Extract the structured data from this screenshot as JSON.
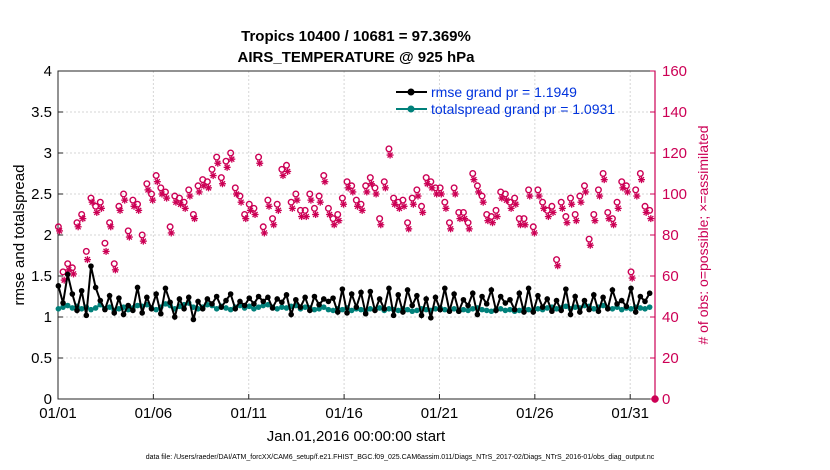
{
  "chart_data": {
    "type": "line",
    "title": "Tropics 10400 / 10681 = 97.369%",
    "subtitle": "AIRS_TEMPERATURE @ 925 hPa",
    "xlabel": "Jan.01,2016 00:00:00 start",
    "ylabel": "rmse and totalspread",
    "ylabel_right": "# of obs: o=possible; ×=assimilated",
    "ylim": [
      0,
      4
    ],
    "ylim_right": [
      0,
      160
    ],
    "xlim": [
      0,
      31.3
    ],
    "x_ticks": [
      0,
      5,
      10,
      15,
      20,
      25,
      30
    ],
    "x_tick_labels": [
      "01/01",
      "01/06",
      "01/11",
      "01/16",
      "01/21",
      "01/26",
      "01/31"
    ],
    "y_ticks": [
      "0",
      "0.5",
      "1",
      "1.5",
      "2",
      "2.5",
      "3",
      "3.5",
      "4"
    ],
    "y_ticks_right": [
      "0",
      "20",
      "40",
      "60",
      "80",
      "100",
      "120",
      "140",
      "160"
    ],
    "legend_position": "top-right",
    "series": [
      {
        "name": "rmse grand pr = 1.1949",
        "axis": "left",
        "color": "#000000",
        "marker": "filled-circle",
        "values": [
          1.38,
          1.17,
          1.52,
          1.28,
          1.08,
          1.32,
          1.02,
          1.62,
          1.36,
          1.2,
          1.09,
          1.26,
          1.05,
          1.23,
          1.03,
          1.14,
          1.08,
          1.36,
          1.05,
          1.24,
          1.1,
          1.28,
          1.04,
          1.35,
          1.18,
          1.0,
          1.22,
          1.1,
          1.24,
          0.97,
          1.19,
          1.1,
          1.22,
          1.16,
          1.25,
          1.12,
          1.2,
          1.28,
          1.1,
          1.19,
          1.14,
          1.23,
          1.16,
          1.25,
          1.19,
          1.24,
          1.11,
          1.22,
          1.18,
          1.27,
          1.03,
          1.21,
          1.12,
          1.24,
          1.08,
          1.25,
          1.15,
          1.22,
          1.19,
          1.23,
          1.06,
          1.34,
          1.05,
          1.28,
          1.12,
          1.3,
          1.04,
          1.31,
          1.08,
          1.22,
          1.1,
          1.35,
          1.02,
          1.27,
          1.06,
          1.33,
          1.14,
          1.26,
          1.02,
          1.22,
          0.99,
          1.24,
          1.09,
          1.35,
          1.07,
          1.28,
          1.07,
          1.21,
          1.14,
          1.29,
          1.03,
          1.25,
          1.16,
          1.33,
          1.08,
          1.25,
          1.17,
          1.21,
          1.09,
          1.29,
          1.06,
          1.35,
          1.06,
          1.26,
          1.12,
          1.22,
          1.07,
          1.2,
          1.08,
          1.34,
          1.03,
          1.25,
          1.06,
          1.2,
          1.09,
          1.27,
          1.07,
          1.24,
          1.1,
          1.33,
          1.16,
          1.2,
          1.13,
          1.35,
          1.06,
          1.25,
          1.19,
          1.29
        ]
      },
      {
        "name": "totalspread grand pr = 1.0931",
        "axis": "left",
        "color": "#00807a",
        "marker": "filled-circle",
        "values": [
          1.1,
          1.12,
          1.14,
          1.11,
          1.13,
          1.1,
          1.12,
          1.09,
          1.11,
          1.15,
          1.1,
          1.12,
          1.08,
          1.1,
          1.12,
          1.09,
          1.11,
          1.14,
          1.13,
          1.15,
          1.11,
          1.09,
          1.12,
          1.16,
          1.14,
          1.1,
          1.13,
          1.15,
          1.17,
          1.12,
          1.1,
          1.12,
          1.15,
          1.14,
          1.1,
          1.13,
          1.11,
          1.09,
          1.12,
          1.14,
          1.11,
          1.13,
          1.1,
          1.12,
          1.14,
          1.15,
          1.12,
          1.1,
          1.12,
          1.11,
          1.13,
          1.14,
          1.1,
          1.12,
          1.11,
          1.09,
          1.1,
          1.12,
          1.09,
          1.08,
          1.1,
          1.09,
          1.11,
          1.08,
          1.1,
          1.09,
          1.07,
          1.1,
          1.09,
          1.11,
          1.08,
          1.1,
          1.09,
          1.08,
          1.1,
          1.09,
          1.07,
          1.08,
          1.1,
          1.09,
          1.08,
          1.1,
          1.11,
          1.09,
          1.08,
          1.1,
          1.07,
          1.09,
          1.08,
          1.1,
          1.11,
          1.09,
          1.08,
          1.07,
          1.09,
          1.1,
          1.08,
          1.09,
          1.07,
          1.08,
          1.1,
          1.09,
          1.08,
          1.1,
          1.09,
          1.11,
          1.12,
          1.1,
          1.11,
          1.13,
          1.1,
          1.12,
          1.11,
          1.14,
          1.13,
          1.1,
          1.12,
          1.14,
          1.11,
          1.1,
          1.12,
          1.09,
          1.11,
          1.1,
          1.12,
          1.11,
          1.1,
          1.12
        ]
      },
      {
        "name": "# obs possible",
        "axis": "right",
        "color": "#cc0055",
        "marker": "open-circle",
        "values": [
          84,
          62,
          66,
          64,
          86,
          90,
          72,
          98,
          94,
          96,
          76,
          86,
          66,
          94,
          100,
          82,
          97,
          95,
          80,
          105,
          100,
          109,
          103,
          101,
          84,
          99,
          98,
          96,
          102,
          90,
          104,
          107,
          106,
          112,
          118,
          108,
          116,
          120,
          103,
          99,
          90,
          95,
          93,
          118,
          84,
          97,
          88,
          95,
          112,
          114,
          96,
          100,
          92,
          92,
          100,
          93,
          99,
          109,
          93,
          88,
          90,
          98,
          106,
          104,
          97,
          95,
          104,
          108,
          103,
          88,
          106,
          122,
          98,
          96,
          97,
          86,
          98,
          102,
          94,
          108,
          106,
          103,
          103,
          96,
          86,
          103,
          91,
          91,
          86,
          110,
          104,
          99,
          90,
          89,
          92,
          101,
          100,
          96,
          98,
          88,
          88,
          102,
          84,
          102,
          96,
          92,
          94,
          68,
          96,
          89,
          98,
          90,
          99,
          104,
          78,
          90,
          102,
          110,
          91,
          88,
          96,
          106,
          104,
          62,
          102,
          110,
          94,
          92
        ]
      },
      {
        "name": "# obs assimilated",
        "axis": "right",
        "color": "#cc0055",
        "marker": "asterisk",
        "values": [
          82,
          58,
          63,
          61,
          84,
          88,
          68,
          96,
          91,
          93,
          72,
          84,
          63,
          92,
          97,
          79,
          94,
          92,
          77,
          102,
          97,
          106,
          100,
          98,
          81,
          96,
          95,
          93,
          99,
          88,
          101,
          104,
          103,
          109,
          115,
          105,
          113,
          117,
          100,
          96,
          88,
          92,
          90,
          115,
          81,
          94,
          85,
          92,
          109,
          111,
          93,
          97,
          89,
          89,
          97,
          90,
          96,
          106,
          90,
          85,
          87,
          95,
          103,
          101,
          94,
          92,
          101,
          105,
          100,
          85,
          103,
          119,
          95,
          93,
          94,
          83,
          95,
          99,
          91,
          105,
          103,
          100,
          100,
          93,
          83,
          100,
          88,
          88,
          83,
          107,
          101,
          96,
          87,
          86,
          89,
          98,
          97,
          93,
          95,
          85,
          85,
          99,
          81,
          99,
          93,
          89,
          91,
          65,
          93,
          86,
          95,
          87,
          96,
          101,
          75,
          87,
          99,
          107,
          88,
          85,
          93,
          103,
          101,
          59,
          99,
          107,
          91,
          88
        ]
      }
    ]
  },
  "footer": "data file: /Users/raeder/DAI/ATM_forcXX/CAM6_setup/f.e21.FHIST_BGC.f09_025.CAM6assim.011/Diags_NTrS_2017-02/Diags_NTrS_2016-01/obs_diag_output.nc"
}
